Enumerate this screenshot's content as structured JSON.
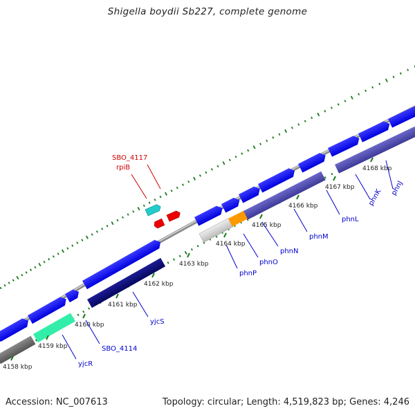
{
  "title": "Shigella boydii Sb227, complete genome",
  "footer": {
    "accession": "Accession: NC_007613",
    "topology": "Topology: circular; Length: 4,519,823 bp; Genes: 4,246"
  },
  "ticks": [
    {
      "label": "4158 kbp"
    },
    {
      "label": "4159 kbp"
    },
    {
      "label": "4160 kbp"
    },
    {
      "label": "4161 kbp"
    },
    {
      "label": "4162 kbp"
    },
    {
      "label": "4163 kbp"
    },
    {
      "label": "4164 kbp"
    },
    {
      "label": "4165 kbp"
    },
    {
      "label": "4166 kbp"
    },
    {
      "label": "4167 kbp"
    },
    {
      "label": "4168 kbp"
    }
  ],
  "gene_labels": [
    {
      "text": "yjcR",
      "color": "#0000cc"
    },
    {
      "text": "SBO_4114",
      "color": "#0000cc"
    },
    {
      "text": "yjcS",
      "color": "#0000cc"
    },
    {
      "text": "phnP",
      "color": "#0000cc"
    },
    {
      "text": "phnO",
      "color": "#0000cc"
    },
    {
      "text": "phnN",
      "color": "#0000cc"
    },
    {
      "text": "phnM",
      "color": "#0000cc"
    },
    {
      "text": "phnL",
      "color": "#0000cc"
    },
    {
      "text": "phnK",
      "color": "#0000cc"
    },
    {
      "text": "phnJ",
      "color": "#0000cc"
    },
    {
      "text": "SBO_4117",
      "color": "#cc0000"
    },
    {
      "text": "rpiB",
      "color": "#cc0000"
    }
  ],
  "colors": {
    "cds_forward": "#0000ee",
    "cds_reverse": "#4a46a8",
    "cds_dark": "#0a0a7a",
    "rna_cyan": "#22cccc",
    "rna_red": "#ee0000",
    "highlight_green": "#33eeaa",
    "highlight_orange": "#ff9900",
    "backbone": "#888888",
    "tick_green": "#1a7a1a"
  }
}
